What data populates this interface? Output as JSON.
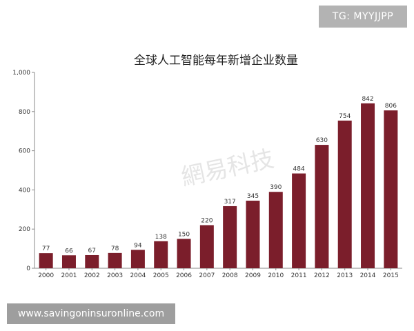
{
  "overlays": {
    "tg_text": "TG: MYYJJPP",
    "site_text": "www.savingoninsuronline.com"
  },
  "watermark": {
    "text": "網易科技"
  },
  "colors": {
    "bar": "#7b1e2b",
    "axis": "#888888",
    "background": "#ffffff"
  },
  "chart_data": {
    "type": "bar",
    "title": "全球人工智能每年新增企业数量",
    "xlabel": "",
    "ylabel": "",
    "ylim": [
      0,
      1000
    ],
    "yticks": [
      0,
      200,
      400,
      600,
      800,
      1000
    ],
    "ytick_labels": [
      "0",
      "200",
      "400",
      "600",
      "800",
      "1,000"
    ],
    "grid": false,
    "categories": [
      "2000",
      "2001",
      "2002",
      "2003",
      "2004",
      "2005",
      "2006",
      "2007",
      "2008",
      "2009",
      "2010",
      "2011",
      "2012",
      "2013",
      "2014",
      "2015"
    ],
    "values": [
      77,
      66,
      67,
      78,
      94,
      138,
      150,
      220,
      317,
      345,
      390,
      484,
      630,
      754,
      842,
      806
    ]
  }
}
